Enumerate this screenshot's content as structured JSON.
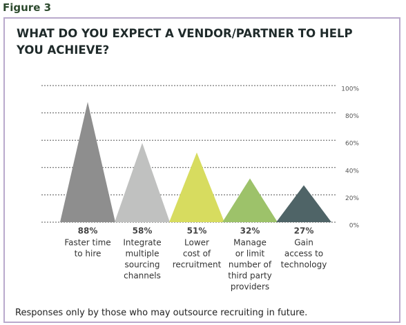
{
  "figure_label": "Figure 3",
  "chart_data": {
    "type": "triangle",
    "title": "WHAT DO YOU EXPECT A VENDOR/PARTNER TO HELP YOU ACHIEVE?",
    "note": "Responses only by those who may outsource recruiting in future.",
    "categories": [
      [
        "Faster time",
        "to hire"
      ],
      [
        "Integrate",
        "multiple",
        "sourcing",
        "channels"
      ],
      [
        "Lower",
        "cost of",
        "recruitment"
      ],
      [
        "Manage",
        "or limit",
        "number of",
        "third party",
        "providers"
      ],
      [
        "Gain",
        "access to",
        "technology"
      ]
    ],
    "values": [
      88,
      58,
      51,
      32,
      27
    ],
    "value_labels": [
      "88%",
      "58%",
      "51%",
      "32%",
      "27%"
    ],
    "colors": [
      "#8e8e8e",
      "#c0c1c0",
      "#d7dc5f",
      "#9dc26a",
      "#4f6467"
    ],
    "ylim": [
      0,
      100
    ],
    "yticks": [
      {
        "value": 0,
        "label": "0%"
      },
      {
        "value": 20,
        "label": "20%"
      },
      {
        "value": 40,
        "label": "40%"
      },
      {
        "value": 60,
        "label": "60%"
      },
      {
        "value": 80,
        "label": "80%"
      },
      {
        "value": 100,
        "label": "100%"
      }
    ],
    "grid": true
  }
}
